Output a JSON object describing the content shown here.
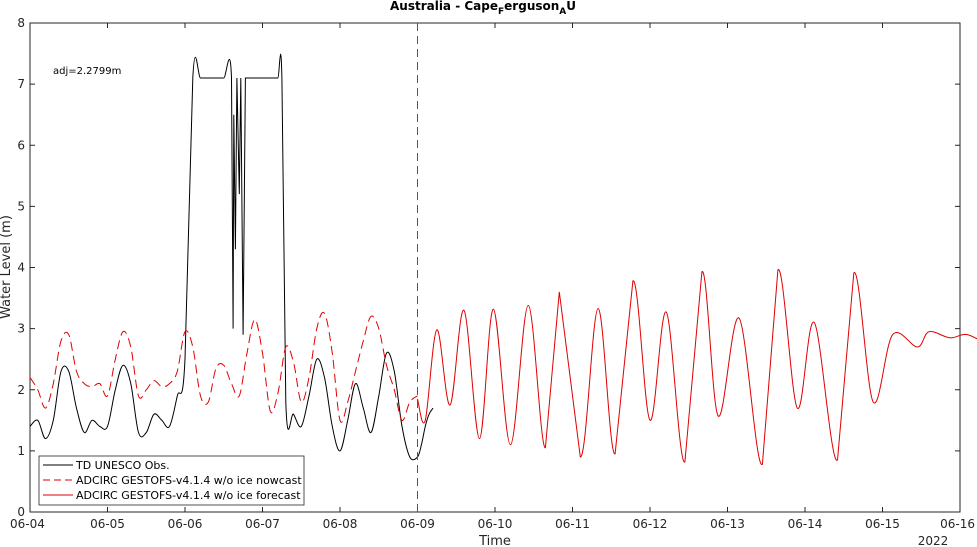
{
  "chart_data": {
    "type": "line",
    "title": {
      "main": "Australia - Cape",
      "sub1": "F",
      "mid": "erguson",
      "sub2": "A",
      "end": "U"
    },
    "xlabel": "Time",
    "ylabel": "Water Level (m)",
    "year_label": "2022",
    "annotation": "adj=2.2799m",
    "x_ticks": [
      "06-04",
      "06-05",
      "06-06",
      "06-07",
      "06-08",
      "06-09",
      "06-10",
      "06-11",
      "06-12",
      "06-13",
      "06-14",
      "06-15",
      "06-16"
    ],
    "xlim": [
      "06-04",
      "06-16"
    ],
    "ylim": [
      0,
      8
    ],
    "y_ticks": [
      "0",
      "1",
      "2",
      "3",
      "4",
      "5",
      "6",
      "7",
      "8"
    ],
    "nowcast_end": "06-09",
    "grid": false,
    "legend_position": "bottom-left",
    "series": [
      {
        "name": "TD UNESCO Obs.",
        "color": "#000000",
        "style": "solid",
        "x_days_from_06-04": [
          0.0,
          0.1,
          0.2,
          0.3,
          0.4,
          0.5,
          0.6,
          0.7,
          0.8,
          0.9,
          1.0,
          1.1,
          1.2,
          1.3,
          1.4,
          1.5,
          1.6,
          1.7,
          1.8,
          1.9,
          2.0,
          2.1,
          2.2,
          2.3,
          2.4,
          2.5,
          2.6,
          2.62,
          2.63,
          2.65,
          2.67,
          2.7,
          2.72,
          2.75,
          2.78,
          2.8,
          2.85,
          2.9,
          2.95,
          3.0,
          3.05,
          3.1,
          3.15,
          3.2,
          3.25,
          3.3,
          3.4,
          3.5,
          3.6,
          3.7,
          3.8,
          3.9,
          4.0,
          4.1,
          4.2,
          4.3,
          4.4,
          4.5,
          4.6,
          4.7,
          4.8,
          4.9,
          5.0,
          5.05,
          5.1,
          5.15,
          5.2
        ],
        "y": [
          1.4,
          1.5,
          1.2,
          1.5,
          2.3,
          2.3,
          1.7,
          1.3,
          1.5,
          1.4,
          1.4,
          2.0,
          2.4,
          2.1,
          1.3,
          1.3,
          1.6,
          1.5,
          1.4,
          1.9,
          2.5,
          7.1,
          7.1,
          7.1,
          7.1,
          7.1,
          7.1,
          3.0,
          6.5,
          4.3,
          7.1,
          5.2,
          7.1,
          2.9,
          7.1,
          7.1,
          7.1,
          7.1,
          7.1,
          7.1,
          7.1,
          7.1,
          7.1,
          7.1,
          7.1,
          1.8,
          1.6,
          1.4,
          1.9,
          2.5,
          2.2,
          1.4,
          1.0,
          1.5,
          2.1,
          1.7,
          1.3,
          1.9,
          2.6,
          2.3,
          1.4,
          0.9,
          0.9,
          1.1,
          1.4,
          1.6,
          1.7
        ]
      },
      {
        "name": "ADCIRC GESTOFS-v4.1.4 w/o ice nowcast",
        "color": "#e00000",
        "style": "dashed",
        "x_days_from_06-04": [
          0.0,
          0.1,
          0.2,
          0.3,
          0.4,
          0.5,
          0.6,
          0.7,
          0.8,
          0.9,
          1.0,
          1.1,
          1.2,
          1.3,
          1.4,
          1.5,
          1.6,
          1.7,
          1.8,
          1.9,
          2.0,
          2.1,
          2.2,
          2.3,
          2.4,
          2.5,
          2.6,
          2.7,
          2.8,
          2.9,
          3.0,
          3.1,
          3.2,
          3.3,
          3.4,
          3.5,
          3.6,
          3.7,
          3.8,
          3.9,
          4.0,
          4.1,
          4.2,
          4.3,
          4.4,
          4.5,
          4.6,
          4.7,
          4.8,
          4.9,
          5.0
        ],
        "y": [
          2.2,
          2.0,
          1.7,
          2.1,
          2.8,
          2.9,
          2.3,
          2.1,
          2.05,
          2.1,
          1.9,
          2.5,
          2.95,
          2.7,
          1.9,
          2.0,
          2.15,
          2.05,
          2.1,
          2.3,
          2.95,
          2.7,
          1.9,
          1.8,
          2.35,
          2.4,
          2.1,
          1.9,
          2.6,
          3.15,
          2.6,
          1.65,
          1.95,
          2.7,
          2.45,
          1.8,
          2.2,
          3.0,
          3.25,
          2.6,
          1.5,
          1.8,
          2.3,
          2.8,
          3.2,
          3.0,
          2.4,
          2.0,
          1.5,
          1.8,
          1.9
        ]
      },
      {
        "name": "ADCIRC GESTOFS-v4.1.4 w/o ice forecast",
        "color": "#e00000",
        "style": "solid",
        "x_days_from_06-04": [
          5.0,
          5.1,
          5.25,
          5.42,
          5.6,
          5.8,
          5.98,
          6.2,
          6.43,
          6.65,
          6.83,
          7.1,
          7.33,
          7.55,
          7.78,
          8.0,
          8.21,
          8.45,
          8.67,
          8.88,
          9.15,
          9.45,
          9.65,
          9.9,
          10.12,
          10.42,
          10.63,
          10.88,
          11.13,
          11.45,
          11.6,
          11.87,
          12.1,
          12.45,
          12.6,
          12.87,
          12.98
        ],
        "y": [
          1.85,
          1.5,
          2.98,
          1.75,
          3.3,
          1.2,
          3.32,
          1.1,
          3.38,
          1.05,
          3.6,
          0.9,
          3.33,
          0.95,
          3.78,
          1.5,
          3.27,
          0.82,
          3.93,
          1.57,
          3.17,
          0.78,
          3.96,
          1.7,
          3.1,
          0.85,
          3.91,
          1.8,
          2.9,
          2.7,
          2.95,
          2.85,
          2.9,
          2.7,
          2.9,
          2.75,
          2.9
        ]
      }
    ]
  }
}
